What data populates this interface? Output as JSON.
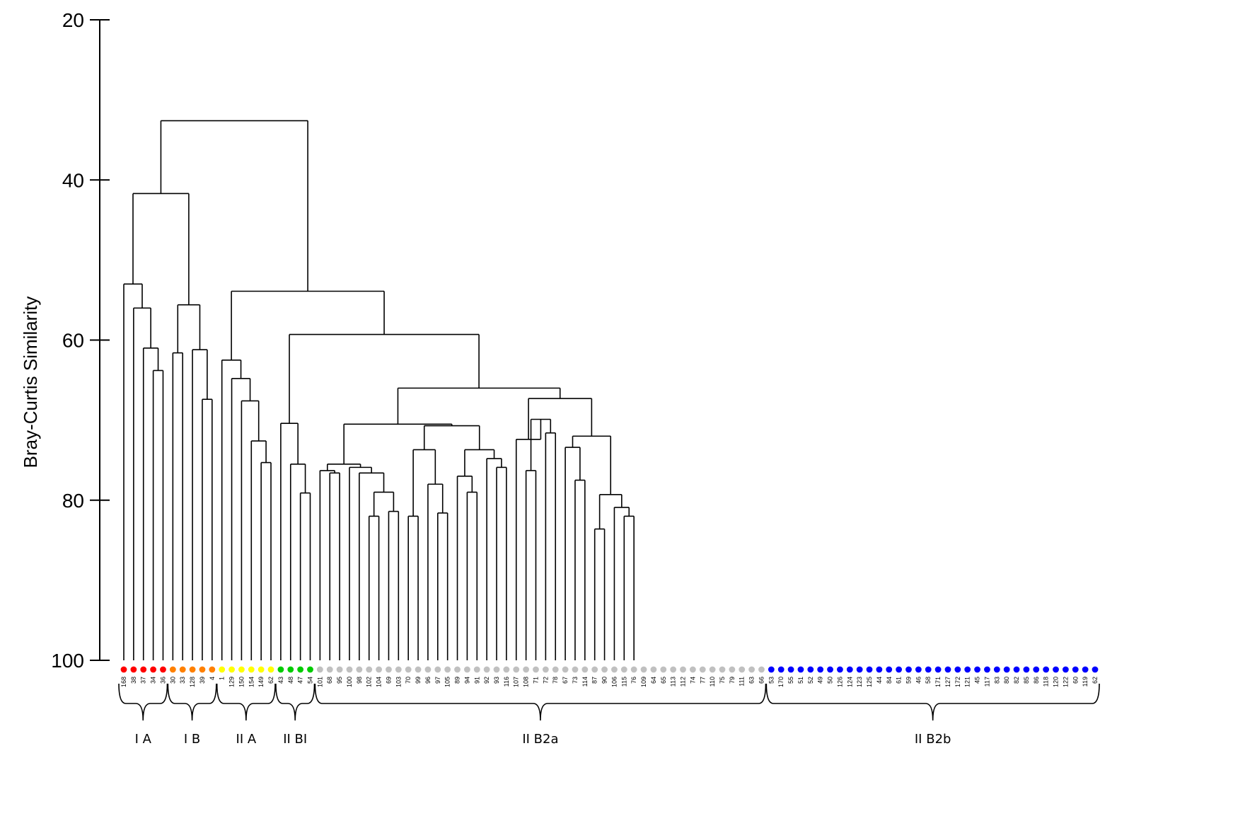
{
  "chart_data": {
    "type": "dendrogram",
    "ylabel": "Bray-Curtis Similarity",
    "ylim": [
      20,
      100
    ],
    "y_ticks": [
      20,
      40,
      60,
      80,
      100
    ],
    "leaves": [
      "168",
      "38",
      "37",
      "34",
      "36",
      "30",
      "33",
      "128",
      "39",
      "4",
      "1",
      "129",
      "150",
      "154",
      "149",
      "62",
      "43",
      "48",
      "47",
      "54",
      "101",
      "68",
      "95",
      "100",
      "98",
      "102",
      "104",
      "69",
      "103",
      "70",
      "99",
      "96",
      "97",
      "105",
      "89",
      "94",
      "91",
      "92",
      "93",
      "116",
      "107",
      "108",
      "71",
      "72",
      "78",
      "67",
      "73",
      "114",
      "87",
      "90",
      "106",
      "115",
      "76",
      "109",
      "64",
      "65",
      "113",
      "112",
      "74",
      "77",
      "110",
      "75",
      "79",
      "111",
      "63",
      "66",
      "53",
      "170",
      "55",
      "51",
      "52",
      "49",
      "50",
      "126",
      "124",
      "123",
      "125",
      "44",
      "84",
      "61",
      "59",
      "46",
      "58",
      "171",
      "127",
      "172",
      "121",
      "45",
      "117",
      "83",
      "80",
      "82",
      "85",
      "86",
      "118",
      "120",
      "122",
      "60",
      "119",
      "62"
    ],
    "leaf_colors": [
      "#ff0000",
      "#ff0000",
      "#ff0000",
      "#ff0000",
      "#ff0000",
      "#ff8000",
      "#ff8000",
      "#ff8000",
      "#ff8000",
      "#ff8000",
      "#ffff00",
      "#ffff00",
      "#ffff00",
      "#ffff00",
      "#ffff00",
      "#ffff00",
      "#00cc00",
      "#00cc00",
      "#00cc00",
      "#00cc00",
      "#c0c0c0",
      "#c0c0c0",
      "#c0c0c0",
      "#c0c0c0",
      "#c0c0c0",
      "#c0c0c0",
      "#c0c0c0",
      "#c0c0c0",
      "#c0c0c0",
      "#c0c0c0",
      "#c0c0c0",
      "#c0c0c0",
      "#c0c0c0",
      "#c0c0c0",
      "#c0c0c0",
      "#c0c0c0",
      "#c0c0c0",
      "#c0c0c0",
      "#c0c0c0",
      "#c0c0c0",
      "#c0c0c0",
      "#c0c0c0",
      "#c0c0c0",
      "#c0c0c0",
      "#c0c0c0",
      "#c0c0c0",
      "#c0c0c0",
      "#c0c0c0",
      "#c0c0c0",
      "#c0c0c0",
      "#c0c0c0",
      "#c0c0c0",
      "#c0c0c0",
      "#c0c0c0",
      "#c0c0c0",
      "#c0c0c0",
      "#c0c0c0",
      "#c0c0c0",
      "#c0c0c0",
      "#c0c0c0",
      "#c0c0c0",
      "#c0c0c0",
      "#c0c0c0",
      "#c0c0c0",
      "#c0c0c0",
      "#c0c0c0",
      "#0000ff",
      "#0000ff",
      "#0000ff",
      "#0000ff",
      "#0000ff",
      "#0000ff",
      "#0000ff",
      "#0000ff",
      "#0000ff",
      "#0000ff",
      "#0000ff",
      "#0000ff",
      "#0000ff",
      "#0000ff",
      "#0000ff",
      "#0000ff",
      "#0000ff",
      "#0000ff",
      "#0000ff",
      "#0000ff",
      "#0000ff",
      "#0000ff",
      "#0000ff",
      "#0000ff",
      "#0000ff",
      "#0000ff",
      "#0000ff",
      "#0000ff",
      "#0000ff",
      "#0000ff",
      "#0000ff",
      "#0000ff",
      "#0000ff",
      "#0000ff"
    ],
    "groups": [
      {
        "label": "I A",
        "first": 0,
        "last": 4
      },
      {
        "label": "I B",
        "first": 5,
        "last": 9
      },
      {
        "label": "II A",
        "first": 10,
        "last": 15
      },
      {
        "label": "II BI",
        "first": 16,
        "last": 19
      },
      {
        "label": "II B2a",
        "first": 20,
        "last": 65
      },
      {
        "label": "II B2b",
        "first": 66,
        "last": 99
      }
    ],
    "tree": [
      32.6,
      [
        41.7,
        [
          53.0,
          0,
          [
            56.0,
            1,
            [
              61.0,
              2,
              [
                63.8,
                3,
                4
              ]
            ]
          ]
        ],
        [
          55.6,
          [
            61.6,
            5,
            6
          ],
          [
            61.2,
            7,
            [
              67.4,
              8,
              9
            ]
          ]
        ]
      ],
      [
        53.9,
        [
          62.5,
          10,
          [
            64.8,
            11,
            [
              67.6,
              12,
              [
                72.6,
                13,
                [
                  75.3,
                  14,
                  15
                ]
              ]
            ]
          ]
        ],
        [
          59.3,
          [
            70.4,
            16,
            [
              75.5,
              17,
              [
                79.1,
                18,
                19
              ]
            ]
          ],
          [
            66.0,
            [
              70.5,
              [
                75.5,
                [
                  76.3,
                  20,
                  [
                    76.6,
                    21,
                    22
                  ]
                ],
                [
                  75.9,
                  23,
                  [
                    76.6,
                    24,
                    [
                      79.0,
                      [
                        82.0,
                        25,
                        26
                      ],
                      [
                        81.4,
                        27,
                        28
                      ]
                    ]
                  ]
                ]
              ],
              [
                70.7,
                [
                  73.7,
                  [
                    82.0,
                    29,
                    30
                  ],
                  [
                    78.0,
                    31,
                    [
                      81.6,
                      32,
                      33
                    ]
                  ]
                ],
                [
                  73.7,
                  [
                    77.0,
                    34,
                    [
                      79.0,
                      35,
                      36
                    ]
                  ],
                  [
                    74.8,
                    37,
                    [
                      75.9,
                      38,
                      39
                    ]
                  ]
                ]
              ]
            ],
            [
              67.3,
              [
                72.4,
                40,
                [
                  69.9,
                  [
                    76.3,
                    41,
                    42
                  ],
                  [
                    71.6,
                    43,
                    44
                  ]
                ]
              ],
              [
                72.0,
                [
                  73.4,
                  45,
                  [
                    77.5,
                    46,
                    47
                  ]
                ],
                [
                  79.3,
                  [
                    83.6,
                    48,
                    49
                  ],
                  [
                    80.9,
                    50,
                    [
                      82.0,
                      51,
                      52
                    ]
                  ]
                ]
              ]
            ]
          ]
        ]
      ]
    ]
  }
}
